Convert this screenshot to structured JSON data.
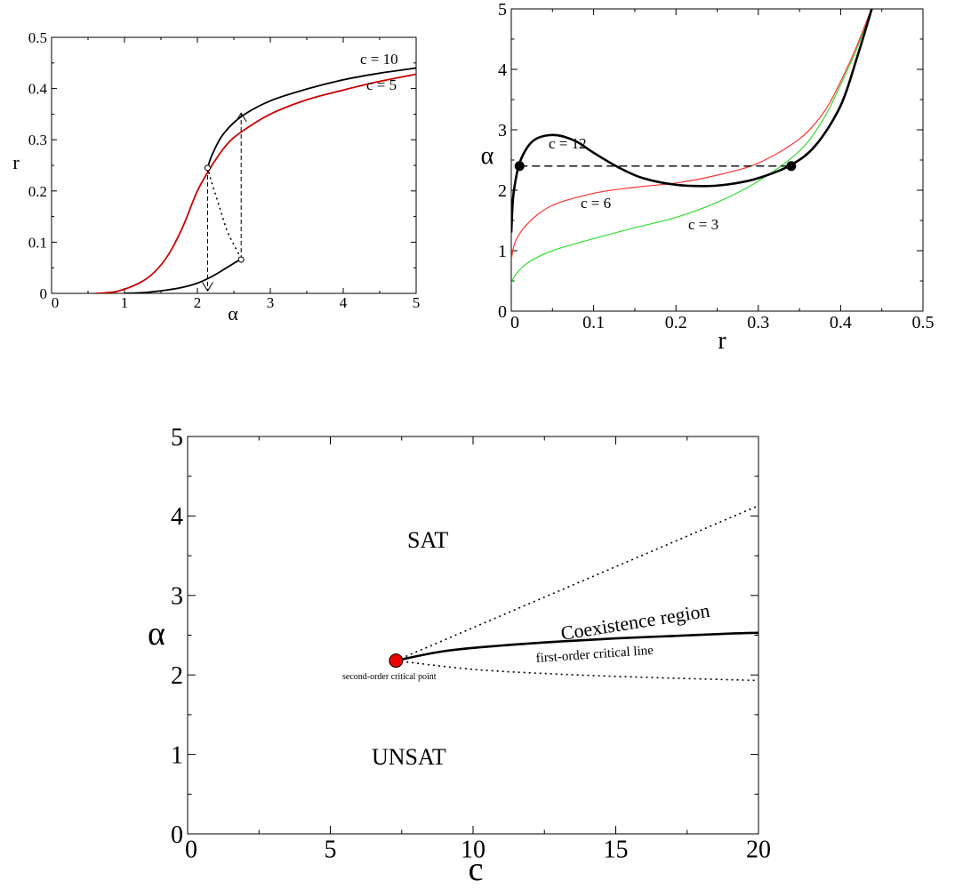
{
  "chart_data": [
    {
      "id": "top-left",
      "type": "line",
      "xlabel": "α",
      "ylabel": "r",
      "xlim": [
        0,
        5
      ],
      "ylim": [
        0,
        0.5
      ],
      "xticks": [
        "0",
        "1",
        "2",
        "3",
        "4",
        "5"
      ],
      "yticks": [
        "0",
        "0.1",
        "0.2",
        "0.3",
        "0.4",
        "0.5"
      ],
      "series": [
        {
          "name": "c = 10",
          "color": "#000000",
          "style": "solid",
          "x": [
            1.0,
            1.3,
            1.6,
            1.8,
            2.0,
            2.2,
            2.4,
            2.55,
            2.6
          ],
          "y": [
            0.0,
            0.002,
            0.007,
            0.012,
            0.02,
            0.033,
            0.05,
            0.063,
            0.066
          ]
        },
        {
          "name": "",
          "color": "#000000",
          "style": "dotted",
          "x": [
            2.6,
            2.5,
            2.4,
            2.3,
            2.2,
            2.14
          ],
          "y": [
            0.068,
            0.095,
            0.125,
            0.17,
            0.215,
            0.245
          ]
        },
        {
          "name": "",
          "color": "#000000",
          "style": "solid",
          "x": [
            2.14,
            2.2,
            2.35,
            2.6,
            3.0,
            3.5,
            4.0,
            4.5,
            5.0
          ],
          "y": [
            0.245,
            0.27,
            0.31,
            0.345,
            0.376,
            0.399,
            0.417,
            0.43,
            0.44
          ]
        },
        {
          "name": "c = 5",
          "color": "#cc0000",
          "style": "solid",
          "x": [
            0.6,
            0.9,
            1.2,
            1.4,
            1.6,
            1.8,
            2.0,
            2.2,
            2.4,
            2.6,
            3.0,
            3.5,
            4.0,
            4.5,
            5.0
          ],
          "y": [
            0.0,
            0.004,
            0.02,
            0.04,
            0.075,
            0.13,
            0.2,
            0.25,
            0.29,
            0.315,
            0.35,
            0.378,
            0.397,
            0.414,
            0.428
          ]
        }
      ],
      "annotations": [
        {
          "text": "c = 10",
          "color": "#000000"
        },
        {
          "text": "c = 5",
          "color": "#cc0000"
        }
      ],
      "arrows": [
        {
          "from": [
            2.14,
            0.245
          ],
          "to": [
            2.14,
            0.005
          ]
        },
        {
          "from": [
            2.6,
            0.066
          ],
          "to": [
            2.6,
            0.352
          ]
        }
      ],
      "open_markers": [
        [
          2.14,
          0.245
        ],
        [
          2.6,
          0.066
        ]
      ]
    },
    {
      "id": "top-right",
      "type": "line",
      "xlabel": "r",
      "ylabel": "α",
      "xlim": [
        0,
        0.5
      ],
      "ylim": [
        0,
        5
      ],
      "xticks": [
        "0",
        "0.1",
        "0.2",
        "0.3",
        "0.4",
        "0.5"
      ],
      "yticks": [
        "0",
        "1",
        "2",
        "3",
        "4",
        "5"
      ],
      "series": [
        {
          "name": "c = 12",
          "color": "#000000",
          "style": "thick",
          "x": [
            0.0,
            0.002,
            0.005,
            0.01,
            0.02,
            0.03,
            0.045,
            0.06,
            0.08,
            0.1,
            0.13,
            0.16,
            0.2,
            0.24,
            0.27,
            0.3,
            0.34,
            0.37,
            0.4,
            0.42,
            0.44
          ],
          "y": [
            1.3,
            1.85,
            2.15,
            2.45,
            2.72,
            2.85,
            2.91,
            2.9,
            2.8,
            2.62,
            2.38,
            2.2,
            2.09,
            2.07,
            2.11,
            2.2,
            2.42,
            2.75,
            3.4,
            4.2,
            5.1
          ]
        },
        {
          "name": "c = 6",
          "color": "#ff3333",
          "style": "thin",
          "x": [
            0.0,
            0.005,
            0.02,
            0.05,
            0.1,
            0.15,
            0.2,
            0.25,
            0.3,
            0.35,
            0.38,
            0.4,
            0.42,
            0.44
          ],
          "y": [
            0.85,
            1.15,
            1.45,
            1.75,
            1.95,
            2.05,
            2.12,
            2.25,
            2.45,
            2.85,
            3.3,
            3.8,
            4.4,
            5.1
          ]
        },
        {
          "name": "c = 3",
          "color": "#33dd33",
          "style": "thin",
          "x": [
            0.0,
            0.005,
            0.02,
            0.05,
            0.1,
            0.15,
            0.2,
            0.25,
            0.3,
            0.35,
            0.38,
            0.4,
            0.42,
            0.44
          ],
          "y": [
            0.45,
            0.6,
            0.8,
            1.0,
            1.2,
            1.38,
            1.55,
            1.8,
            2.15,
            2.65,
            3.2,
            3.75,
            4.35,
            5.1
          ]
        }
      ],
      "annotations": [
        {
          "text": "c = 12",
          "color": "#000000"
        },
        {
          "text": "c = 6",
          "color": "#ff3333"
        },
        {
          "text": "c = 3",
          "color": "#33dd33"
        }
      ],
      "dashed_line": {
        "x": [
          0.01,
          0.34
        ],
        "y": 2.4
      },
      "points": [
        [
          0.01,
          2.4
        ],
        [
          0.34,
          2.4
        ]
      ]
    },
    {
      "id": "bottom",
      "type": "line",
      "xlabel": "c",
      "ylabel": "α",
      "xlim": [
        0,
        20
      ],
      "ylim": [
        0,
        5
      ],
      "xticks": [
        "0",
        "5",
        "10",
        "15",
        "20"
      ],
      "yticks": [
        "0",
        "1",
        "2",
        "3",
        "4",
        "5"
      ],
      "series": [
        {
          "name": "",
          "color": "#000000",
          "style": "thick",
          "x": [
            7.3,
            9,
            11,
            13,
            15,
            17,
            19,
            20
          ],
          "y": [
            2.18,
            2.3,
            2.37,
            2.42,
            2.46,
            2.49,
            2.52,
            2.53
          ]
        },
        {
          "name": "",
          "color": "#000000",
          "style": "dotted",
          "x": [
            7.3,
            20
          ],
          "y": [
            2.18,
            4.13
          ]
        },
        {
          "name": "",
          "color": "#000000",
          "style": "dotted",
          "x": [
            7.3,
            10,
            13,
            16,
            20
          ],
          "y": [
            2.18,
            2.07,
            2.01,
            1.97,
            1.93
          ]
        }
      ],
      "critical_point": {
        "x": 7.3,
        "y": 2.18,
        "color": "#ee0000"
      },
      "labels": {
        "sat": "SAT",
        "unsat": "UNSAT",
        "coexistence": "Coexistence region",
        "first_order": "first-order critical line",
        "second_order": "second-order critical point"
      }
    }
  ]
}
